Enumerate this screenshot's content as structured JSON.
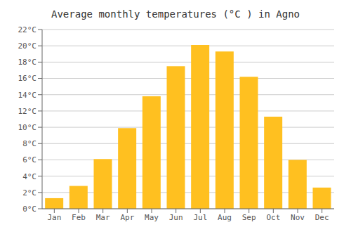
{
  "chart_data": {
    "type": "bar",
    "title": "Average monthly temperatures (°C ) in Agno",
    "categories": [
      "Jan",
      "Feb",
      "Mar",
      "Apr",
      "May",
      "Jun",
      "Jul",
      "Aug",
      "Sep",
      "Oct",
      "Nov",
      "Dec"
    ],
    "values": [
      1.3,
      2.8,
      6.1,
      9.9,
      13.8,
      17.5,
      20.1,
      19.3,
      16.2,
      11.3,
      6.0,
      2.6
    ],
    "color": "#FFC020",
    "ylim": [
      0,
      22
    ],
    "yticks": [
      {
        "value": 0,
        "label": "0°C"
      },
      {
        "value": 2,
        "label": "2°C"
      },
      {
        "value": 4,
        "label": "4°C"
      },
      {
        "value": 6,
        "label": "6°C"
      },
      {
        "value": 8,
        "label": "8°C"
      },
      {
        "value": 10,
        "label": "10°C"
      },
      {
        "value": 12,
        "label": "12°C"
      },
      {
        "value": 14,
        "label": "14°C"
      },
      {
        "value": 16,
        "label": "16°C"
      },
      {
        "value": 18,
        "label": "18°C"
      },
      {
        "value": 20,
        "label": "20°C"
      },
      {
        "value": 22,
        "label": "22°C"
      }
    ],
    "grid": true
  }
}
